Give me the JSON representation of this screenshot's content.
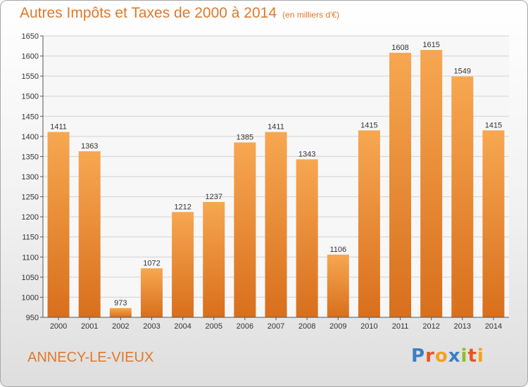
{
  "header": {
    "title": "Autres Impôts et Taxes de 2000 à 2014",
    "subtitle": "(en milliers d'€)"
  },
  "footer": {
    "city": "ANNECY-LE-VIEUX",
    "logo_letters": [
      "P",
      "r",
      "o",
      "x",
      "i",
      "t",
      "i"
    ],
    "logo_colors": [
      "#3a7fc4",
      "#e8541f",
      "#f2a21b",
      "#3a7fc4",
      "#8cbf26",
      "#e8541f",
      "#f2a21b"
    ]
  },
  "chart_data": {
    "type": "bar",
    "title": "Autres Impôts et Taxes de 2000 à 2014",
    "subtitle": "(en milliers d'€)",
    "categories": [
      "2000",
      "2001",
      "2002",
      "2003",
      "2004",
      "2005",
      "2006",
      "2007",
      "2008",
      "2009",
      "2010",
      "2011",
      "2012",
      "2013",
      "2014"
    ],
    "values": [
      1411,
      1363,
      973,
      1072,
      1212,
      1237,
      1385,
      1411,
      1343,
      1106,
      1415,
      1608,
      1615,
      1549,
      1415
    ],
    "ylim": [
      950,
      1650
    ],
    "yticks": [
      "950",
      "1000",
      "1050",
      "1100",
      "1150",
      "1200",
      "1250",
      "1300",
      "1350",
      "1400",
      "1450",
      "1500",
      "1550",
      "1600",
      "1650"
    ],
    "grid": true,
    "bar_color_light": "#f7a751",
    "bar_color_dark": "#d86f1c"
  }
}
